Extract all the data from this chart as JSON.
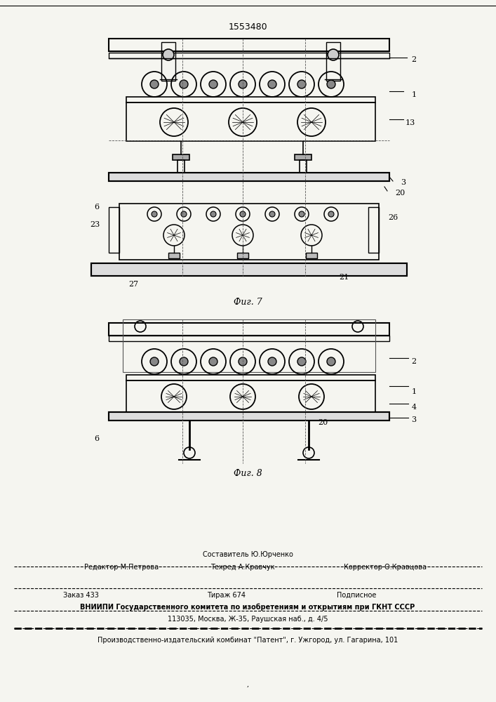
{
  "patent_number": "1553480",
  "fig7_label": "Фиг. 7",
  "fig8_label": "Фиг. 8",
  "footer_line1_left": "Редактор М.Петрова",
  "footer_line1_center1": "Составитель Ю.Юрченко",
  "footer_line1_center2": "Техред А.Кравчук",
  "footer_line1_right": "Корректор О.Кравцова",
  "footer_line2_a": "Заказ 433",
  "footer_line2_b": "Тираж 674",
  "footer_line2_c": "Подписное",
  "footer_line3": "ВНИИПИ Государственного комитета по изобретениям и открытиям при ГКНТ СССР",
  "footer_line4": "113035, Москва, Ж-35, Раушская наб., д. 4/5",
  "footer_line5": "Производственно-издательский комбинат \"Патент\", г. Ужгород, ул. Гагарина, 101",
  "bg_color": "#f5f5f0"
}
